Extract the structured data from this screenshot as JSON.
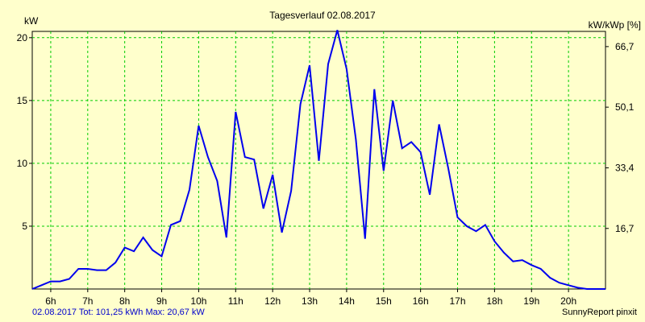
{
  "chart_data": {
    "type": "line",
    "title": "Tagesverlauf 02.08.2017",
    "ylabel_left": "kW",
    "ylabel_right": "kW/kWp [%]",
    "xlim": [
      5.5,
      21.0
    ],
    "ylim": [
      0,
      20.5
    ],
    "x_ticks": [
      6,
      7,
      8,
      9,
      10,
      11,
      12,
      13,
      14,
      15,
      16,
      17,
      18,
      19,
      20
    ],
    "x_tick_labels": [
      "6h",
      "7h",
      "8h",
      "9h",
      "10h",
      "11h",
      "12h",
      "13h",
      "14h",
      "15h",
      "16h",
      "17h",
      "18h",
      "19h",
      "20h"
    ],
    "y_ticks_left": [
      5,
      10,
      15,
      20
    ],
    "y_tick_labels_left": [
      "5",
      "10",
      "15",
      "20"
    ],
    "y_ticks_right_at_kw": [
      4.82,
      9.64,
      14.47,
      19.29
    ],
    "y_tick_labels_right": [
      "16,7",
      "33,4",
      "50,1",
      "66,7"
    ],
    "grid": true,
    "series": [
      {
        "name": "kW",
        "color": "#0000ee",
        "x": [
          5.5,
          5.75,
          6.0,
          6.25,
          6.5,
          6.75,
          7.0,
          7.25,
          7.5,
          7.75,
          8.0,
          8.25,
          8.5,
          8.75,
          9.0,
          9.25,
          9.5,
          9.75,
          10.0,
          10.25,
          10.5,
          10.75,
          11.0,
          11.25,
          11.5,
          11.75,
          12.0,
          12.25,
          12.5,
          12.75,
          13.0,
          13.25,
          13.5,
          13.75,
          14.0,
          14.25,
          14.5,
          14.75,
          15.0,
          15.25,
          15.5,
          15.75,
          16.0,
          16.25,
          16.5,
          16.75,
          17.0,
          17.25,
          17.5,
          17.75,
          18.0,
          18.25,
          18.5,
          18.75,
          19.0,
          19.25,
          19.5,
          19.75,
          20.0,
          20.25,
          20.5,
          20.75,
          21.0
        ],
        "y": [
          0.0,
          0.3,
          0.6,
          0.6,
          0.8,
          1.6,
          1.6,
          1.5,
          1.5,
          2.1,
          3.3,
          3.0,
          4.1,
          3.1,
          2.6,
          5.1,
          5.4,
          7.9,
          13.0,
          10.5,
          8.6,
          4.1,
          14.1,
          10.5,
          10.3,
          6.4,
          9.1,
          4.5,
          7.8,
          14.7,
          17.8,
          10.2,
          17.9,
          20.6,
          17.5,
          11.9,
          4.0,
          15.9,
          9.4,
          15.0,
          11.2,
          11.7,
          10.9,
          7.5,
          13.1,
          9.6,
          5.7,
          5.0,
          4.6,
          5.1,
          3.8,
          2.9,
          2.2,
          2.3,
          1.9,
          1.6,
          0.9,
          0.5,
          0.3,
          0.1,
          0.0,
          0.0,
          0.0
        ]
      }
    ]
  },
  "footer": {
    "summary": "02.08.2017 Tot: 101,25 kWh Max: 20,67 kW",
    "brand": "SunnyReport pinxit"
  }
}
